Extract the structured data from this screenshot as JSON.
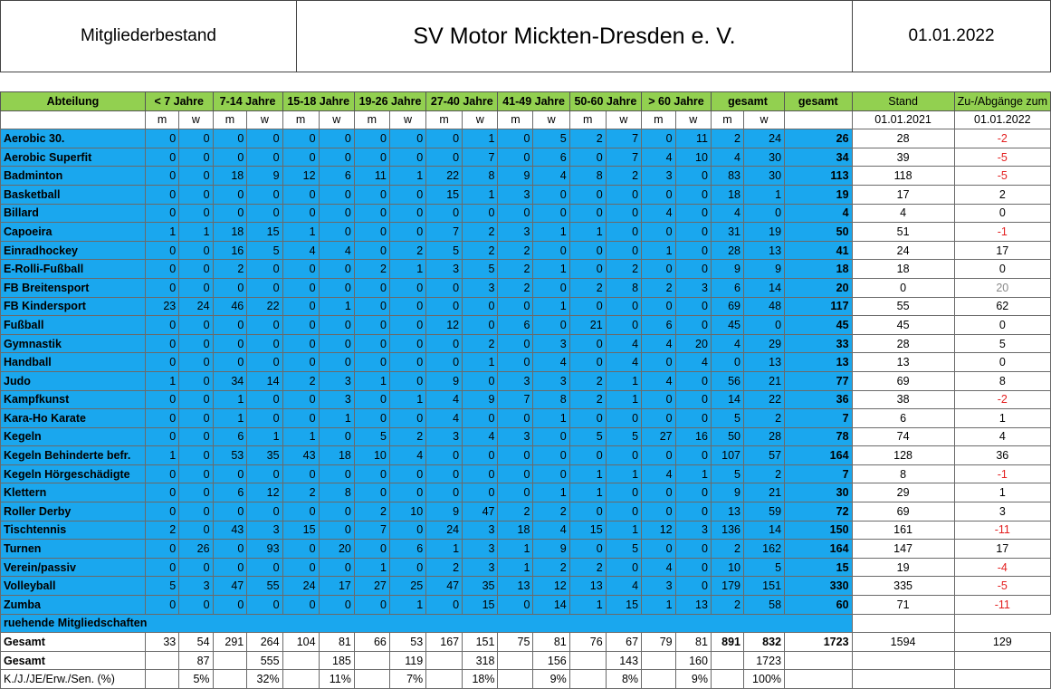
{
  "header": {
    "left": "Mitgliederbestand",
    "title": "SV Motor Mickten-Dresden e. V.",
    "date": "01.01.2022"
  },
  "columns": {
    "abteilung": "Abteilung",
    "groups": [
      "< 7 Jahre",
      "7-14 Jahre",
      "15-18 Jahre",
      "19-26 Jahre",
      "27-40 Jahre",
      "41-49 Jahre",
      "50-60 Jahre",
      "> 60 Jahre",
      "gesamt"
    ],
    "total": "gesamt",
    "stand": "Stand",
    "change": "Zu-/Abgänge zum",
    "m": "m",
    "w": "w",
    "stand_date": "01.01.2021",
    "change_date": "01.01.2022"
  },
  "rows": [
    {
      "name": "Aerobic 30.",
      "v": [
        "0",
        "0",
        "0",
        "0",
        "0",
        "0",
        "0",
        "0",
        "0",
        "1",
        "0",
        "5",
        "2",
        "7",
        "0",
        "11",
        "2",
        "24"
      ],
      "total": "26",
      "stand": "28",
      "change": "-2"
    },
    {
      "name": "Aerobic Superfit",
      "v": [
        "0",
        "0",
        "0",
        "0",
        "0",
        "0",
        "0",
        "0",
        "0",
        "7",
        "0",
        "6",
        "0",
        "7",
        "4",
        "10",
        "4",
        "30"
      ],
      "total": "34",
      "stand": "39",
      "change": "-5"
    },
    {
      "name": "Badminton",
      "v": [
        "0",
        "0",
        "18",
        "9",
        "12",
        "6",
        "11",
        "1",
        "22",
        "8",
        "9",
        "4",
        "8",
        "2",
        "3",
        "0",
        "83",
        "30"
      ],
      "total": "113",
      "stand": "118",
      "change": "-5"
    },
    {
      "name": "Basketball",
      "v": [
        "0",
        "0",
        "0",
        "0",
        "0",
        "0",
        "0",
        "0",
        "15",
        "1",
        "3",
        "0",
        "0",
        "0",
        "0",
        "0",
        "18",
        "1"
      ],
      "total": "19",
      "stand": "17",
      "change": "2"
    },
    {
      "name": "Billard",
      "v": [
        "0",
        "0",
        "0",
        "0",
        "0",
        "0",
        "0",
        "0",
        "0",
        "0",
        "0",
        "0",
        "0",
        "0",
        "4",
        "0",
        "4",
        "0"
      ],
      "total": "4",
      "stand": "4",
      "change": "0"
    },
    {
      "name": "Capoeira",
      "v": [
        "1",
        "1",
        "18",
        "15",
        "1",
        "0",
        "0",
        "0",
        "7",
        "2",
        "3",
        "1",
        "1",
        "0",
        "0",
        "0",
        "31",
        "19"
      ],
      "total": "50",
      "stand": "51",
      "change": "-1"
    },
    {
      "name": "Einradhockey",
      "v": [
        "0",
        "0",
        "16",
        "5",
        "4",
        "4",
        "0",
        "2",
        "5",
        "2",
        "2",
        "0",
        "0",
        "0",
        "1",
        "0",
        "28",
        "13"
      ],
      "total": "41",
      "stand": "24",
      "change": "17"
    },
    {
      "name": "E-Rolli-Fußball",
      "v": [
        "0",
        "0",
        "2",
        "0",
        "0",
        "0",
        "2",
        "1",
        "3",
        "5",
        "2",
        "1",
        "0",
        "2",
        "0",
        "0",
        "9",
        "9"
      ],
      "total": "18",
      "stand": "18",
      "change": "0"
    },
    {
      "name": "FB Breitensport",
      "v": [
        "0",
        "0",
        "0",
        "0",
        "0",
        "0",
        "0",
        "0",
        "0",
        "3",
        "2",
        "0",
        "2",
        "8",
        "2",
        "3",
        "6",
        "14"
      ],
      "total": "20",
      "stand": "0",
      "change": "20"
    },
    {
      "name": "FB Kindersport",
      "v": [
        "23",
        "24",
        "46",
        "22",
        "0",
        "1",
        "0",
        "0",
        "0",
        "0",
        "0",
        "1",
        "0",
        "0",
        "0",
        "0",
        "69",
        "48"
      ],
      "total": "117",
      "stand": "55",
      "change": "62"
    },
    {
      "name": "Fußball",
      "v": [
        "0",
        "0",
        "0",
        "0",
        "0",
        "0",
        "0",
        "0",
        "12",
        "0",
        "6",
        "0",
        "21",
        "0",
        "6",
        "0",
        "45",
        "0"
      ],
      "total": "45",
      "stand": "45",
      "change": "0"
    },
    {
      "name": "Gymnastik",
      "v": [
        "0",
        "0",
        "0",
        "0",
        "0",
        "0",
        "0",
        "0",
        "0",
        "2",
        "0",
        "3",
        "0",
        "4",
        "4",
        "20",
        "4",
        "29"
      ],
      "total": "33",
      "stand": "28",
      "change": "5"
    },
    {
      "name": "Handball",
      "v": [
        "0",
        "0",
        "0",
        "0",
        "0",
        "0",
        "0",
        "0",
        "0",
        "1",
        "0",
        "4",
        "0",
        "4",
        "0",
        "4",
        "0",
        "13"
      ],
      "total": "13",
      "stand": "13",
      "change": "0"
    },
    {
      "name": "Judo",
      "v": [
        "1",
        "0",
        "34",
        "14",
        "2",
        "3",
        "1",
        "0",
        "9",
        "0",
        "3",
        "3",
        "2",
        "1",
        "4",
        "0",
        "56",
        "21"
      ],
      "total": "77",
      "stand": "69",
      "change": "8"
    },
    {
      "name": "Kampfkunst",
      "v": [
        "0",
        "0",
        "1",
        "0",
        "0",
        "3",
        "0",
        "1",
        "4",
        "9",
        "7",
        "8",
        "2",
        "1",
        "0",
        "0",
        "14",
        "22"
      ],
      "total": "36",
      "stand": "38",
      "change": "-2"
    },
    {
      "name": "Kara-Ho Karate",
      "v": [
        "0",
        "0",
        "1",
        "0",
        "0",
        "1",
        "0",
        "0",
        "4",
        "0",
        "0",
        "1",
        "0",
        "0",
        "0",
        "0",
        "5",
        "2"
      ],
      "total": "7",
      "stand": "6",
      "change": "1"
    },
    {
      "name": "Kegeln",
      "v": [
        "0",
        "0",
        "6",
        "1",
        "1",
        "0",
        "5",
        "2",
        "3",
        "4",
        "3",
        "0",
        "5",
        "5",
        "27",
        "16",
        "50",
        "28"
      ],
      "total": "78",
      "stand": "74",
      "change": "4"
    },
    {
      "name": "Kegeln Behinderte befr.",
      "v": [
        "1",
        "0",
        "53",
        "35",
        "43",
        "18",
        "10",
        "4",
        "0",
        "0",
        "0",
        "0",
        "0",
        "0",
        "0",
        "0",
        "107",
        "57"
      ],
      "total": "164",
      "stand": "128",
      "change": "36"
    },
    {
      "name": "Kegeln Hörgeschädigte",
      "v": [
        "0",
        "0",
        "0",
        "0",
        "0",
        "0",
        "0",
        "0",
        "0",
        "0",
        "0",
        "0",
        "1",
        "1",
        "4",
        "1",
        "5",
        "2"
      ],
      "total": "7",
      "stand": "8",
      "change": "-1"
    },
    {
      "name": "Klettern",
      "v": [
        "0",
        "0",
        "6",
        "12",
        "2",
        "8",
        "0",
        "0",
        "0",
        "0",
        "0",
        "1",
        "1",
        "0",
        "0",
        "0",
        "9",
        "21"
      ],
      "total": "30",
      "stand": "29",
      "change": "1"
    },
    {
      "name": "Roller Derby",
      "v": [
        "0",
        "0",
        "0",
        "0",
        "0",
        "0",
        "2",
        "10",
        "9",
        "47",
        "2",
        "2",
        "0",
        "0",
        "0",
        "0",
        "13",
        "59"
      ],
      "total": "72",
      "stand": "69",
      "change": "3"
    },
    {
      "name": "Tischtennis",
      "v": [
        "2",
        "0",
        "43",
        "3",
        "15",
        "0",
        "7",
        "0",
        "24",
        "3",
        "18",
        "4",
        "15",
        "1",
        "12",
        "3",
        "136",
        "14"
      ],
      "total": "150",
      "stand": "161",
      "change": "-11"
    },
    {
      "name": "Turnen",
      "v": [
        "0",
        "26",
        "0",
        "93",
        "0",
        "20",
        "0",
        "6",
        "1",
        "3",
        "1",
        "9",
        "0",
        "5",
        "0",
        "0",
        "2",
        "162"
      ],
      "total": "164",
      "stand": "147",
      "change": "17"
    },
    {
      "name": "Verein/passiv",
      "v": [
        "0",
        "0",
        "0",
        "0",
        "0",
        "0",
        "1",
        "0",
        "2",
        "3",
        "1",
        "2",
        "2",
        "0",
        "4",
        "0",
        "10",
        "5"
      ],
      "total": "15",
      "stand": "19",
      "change": "-4"
    },
    {
      "name": "Volleyball",
      "v": [
        "5",
        "3",
        "47",
        "55",
        "24",
        "17",
        "27",
        "25",
        "47",
        "35",
        "13",
        "12",
        "13",
        "4",
        "3",
        "0",
        "179",
        "151"
      ],
      "total": "330",
      "stand": "335",
      "change": "-5"
    },
    {
      "name": "Zumba",
      "v": [
        "0",
        "0",
        "0",
        "0",
        "0",
        "0",
        "0",
        "1",
        "0",
        "15",
        "0",
        "14",
        "1",
        "15",
        "1",
        "13",
        "2",
        "58"
      ],
      "total": "60",
      "stand": "71",
      "change": "-11"
    }
  ],
  "ruhend": "ruehende Mitgliedschaften",
  "gesamt_row": {
    "label": "Gesamt",
    "v": [
      "33",
      "54",
      "291",
      "264",
      "104",
      "81",
      "66",
      "53",
      "167",
      "151",
      "75",
      "81",
      "76",
      "67",
      "79",
      "81",
      "891",
      "832"
    ],
    "total": "1723",
    "stand": "1594",
    "change": "129"
  },
  "gesamt2": {
    "label": "Gesamt",
    "v": [
      "87",
      "555",
      "185",
      "119",
      "318",
      "156",
      "143",
      "160",
      "1723"
    ]
  },
  "percent": {
    "label": "K./J./JE/Erw./Sen. (%)",
    "v": [
      "5%",
      "32%",
      "11%",
      "7%",
      "18%",
      "9%",
      "8%",
      "9%",
      "100%"
    ]
  },
  "colors": {
    "green": "#92d050",
    "blue": "#1aa7ee",
    "negative": "#e32020"
  }
}
